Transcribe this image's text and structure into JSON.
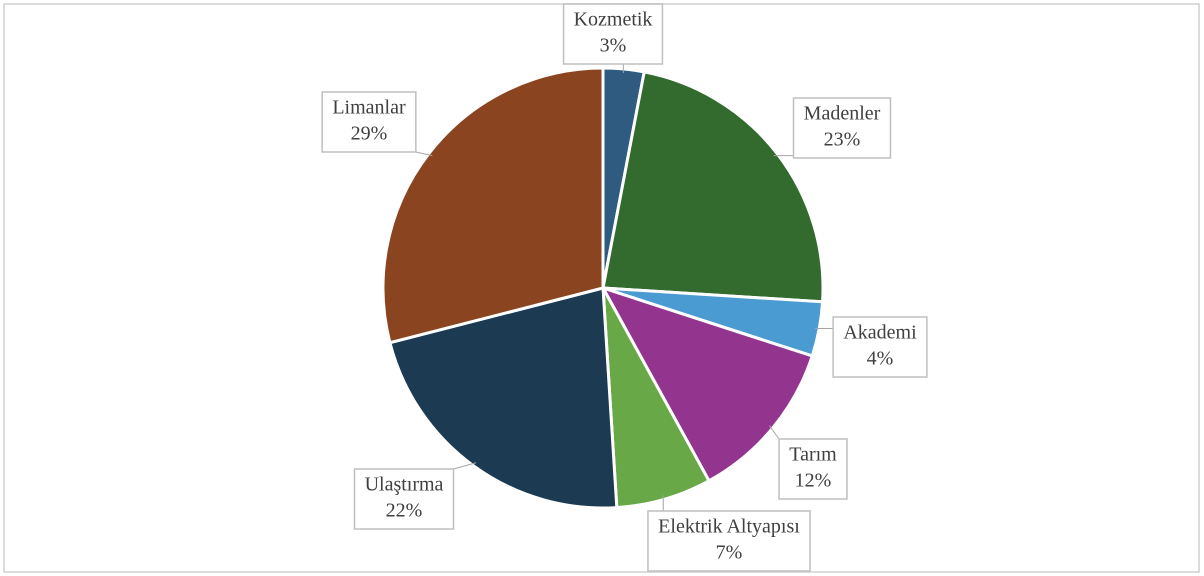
{
  "chart_data": {
    "type": "pie",
    "categories": [
      "Kozmetik",
      "Madenler",
      "Akademi",
      "Tarım",
      "Elektrik Altyapısı",
      "Ulaştırma",
      "Limanlar"
    ],
    "values": [
      3,
      23,
      4,
      12,
      7,
      22,
      29
    ],
    "value_labels": [
      "3%",
      "23%",
      "4%",
      "12%",
      "7%",
      "22%",
      "29%"
    ],
    "colors": [
      "#2e5b7f",
      "#336b2e",
      "#4a9bd1",
      "#93358f",
      "#68a846",
      "#1c3a52",
      "#8b4420"
    ]
  }
}
